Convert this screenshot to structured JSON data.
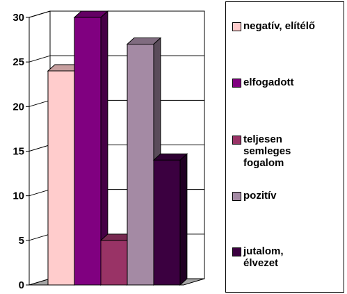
{
  "chart_data": {
    "type": "bar",
    "three_d": true,
    "categories": [
      "negatív, elítélő",
      "elfogadott",
      "teljesen semleges fogalom",
      "pozitív",
      "jutalom, élvezet"
    ],
    "series": [
      {
        "name": "negatív, elítélő",
        "value": 24,
        "color": "#FFCCCC"
      },
      {
        "name": "elfogadott",
        "value": 30,
        "color": "#800080"
      },
      {
        "name": "teljesen semleges fogalom",
        "value": 5,
        "color": "#993366"
      },
      {
        "name": "pozitív",
        "value": 27,
        "color": "#A48AA4"
      },
      {
        "name": "jutalom, élvezet",
        "value": 14,
        "color": "#3B0040"
      }
    ],
    "yticks": [
      "0",
      "5",
      "10",
      "15",
      "20",
      "25",
      "30"
    ],
    "ylim": [
      0,
      30
    ],
    "grid": true,
    "legend_position": "right",
    "title": "",
    "xlabel": "",
    "ylabel": ""
  },
  "legend": {
    "items": [
      {
        "label": "negatív, elítélő",
        "color": "#FFCCCC"
      },
      {
        "label": "elfogadott",
        "color": "#800080"
      },
      {
        "label": "teljesen\nsemleges\nfogalom",
        "color": "#993366"
      },
      {
        "label": "pozitív",
        "color": "#A48AA4"
      },
      {
        "label": "jutalom,\nélvezet",
        "color": "#3B0040"
      }
    ]
  }
}
